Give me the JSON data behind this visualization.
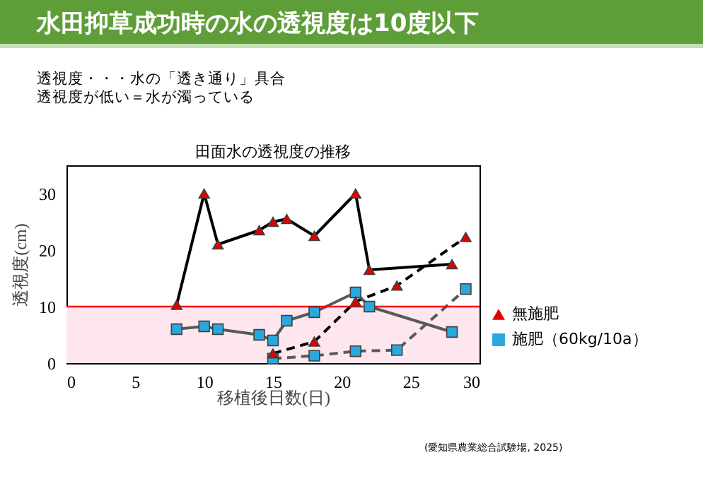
{
  "chart_data": {
    "type": "line",
    "title": "水田抑草成功時の水の透視度は10度以下",
    "subtitle": [
      "透視度・・・水の「透き通り」具合",
      "透視度が低い＝水が濁っている"
    ],
    "annotations": [
      "田面水の透視度の推移",
      "(愛知県農業総合試験場, 2025)"
    ],
    "xlabel": "移植後日数(日)",
    "ylabel": "透視度(cm)",
    "series": [
      {
        "name": "無施肥",
        "color": "#e00000",
        "marker": "triangle",
        "line_style": "solid",
        "x": [
          8,
          10,
          11,
          14,
          15,
          16,
          18,
          21,
          22,
          28
        ],
        "values": [
          10.3,
          30,
          21,
          23.5,
          25,
          25.5,
          22.5,
          30,
          16.5,
          17.5
        ]
      },
      {
        "color": "#e00000",
        "marker": "triangle",
        "line_style": "dashed",
        "x": [
          15,
          18,
          21,
          24,
          29
        ],
        "values": [
          1.7,
          3.8,
          10.9,
          13.7,
          22.3
        ]
      },
      {
        "name": "施肥（60kg/10a）",
        "color": "#29a8e0",
        "marker": "square",
        "line_style": "solid",
        "x": [
          8,
          10,
          11,
          14,
          15,
          16,
          18,
          21,
          22,
          28
        ],
        "values": [
          6,
          6.5,
          6,
          5,
          4,
          7.5,
          9,
          12.5,
          10,
          5.5
        ]
      },
      {
        "color": "#29a8e0",
        "marker": "square",
        "line_style": "dashed",
        "x": [
          15,
          18,
          21,
          24,
          29
        ],
        "values": [
          0.8,
          1.3,
          2.1,
          2.3,
          13.1
        ]
      }
    ],
    "xlim": [
      0,
      30
    ],
    "xticks": [
      0,
      5,
      10,
      15,
      20,
      25,
      30
    ],
    "ylim": [
      0,
      35
    ],
    "yticks": [
      0,
      10,
      20,
      30
    ],
    "ref_lines": [
      {
        "axis": "y",
        "value": 10,
        "color": "#ff0000"
      }
    ],
    "bands": [
      {
        "axis": "y",
        "from": 0,
        "to": 10,
        "color": "#fde6ee"
      }
    ],
    "grid": false,
    "legend": "bottom right"
  }
}
